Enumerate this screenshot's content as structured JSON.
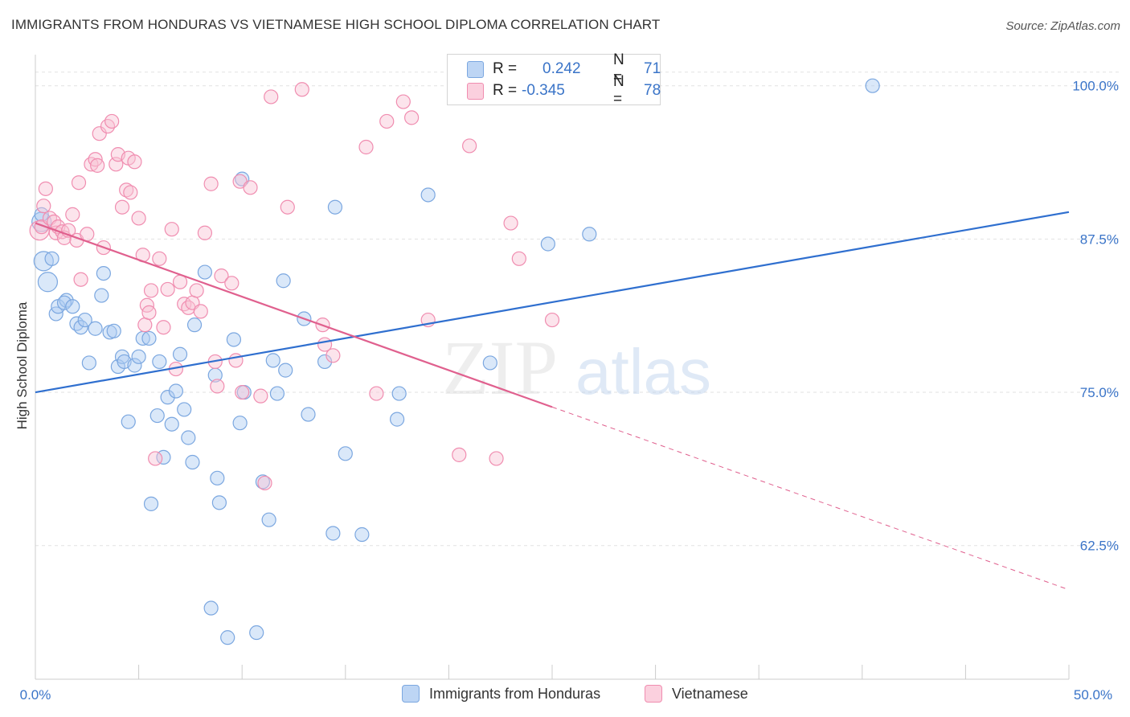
{
  "title": "IMMIGRANTS FROM HONDURAS VS VIETNAMESE HIGH SCHOOL DIPLOMA CORRELATION CHART",
  "source": "Source: ZipAtlas.com",
  "watermark": {
    "zip": "ZIP",
    "atlas": "atlas"
  },
  "stats": [
    {
      "r_label": "R =",
      "r_value": "0.242",
      "n_label": "N =",
      "n_value": "71",
      "color": "#7ba7e0"
    },
    {
      "r_label": "R =",
      "r_value": "-0.345",
      "n_label": "N =",
      "n_value": "78",
      "color": "#f08db0"
    }
  ],
  "legend": [
    "Immigrants from Honduras",
    "Vietnamese"
  ],
  "chart_data": {
    "type": "scatter",
    "title": "IMMIGRANTS FROM HONDURAS VS VIETNAMESE HIGH SCHOOL DIPLOMA CORRELATION CHART",
    "xlabel": "",
    "ylabel": "High School Diploma",
    "xlim": [
      0,
      50
    ],
    "ylim": [
      51.6,
      102.8
    ],
    "x_tick_labels": [
      "0.0%",
      "50.0%"
    ],
    "y_ticks": [
      62.5,
      75.0,
      87.5,
      100.0
    ],
    "y_tick_labels": [
      "62.5%",
      "75.0%",
      "87.5%",
      "100.0%"
    ],
    "grid": true,
    "legend_position": "bottom-center",
    "series": [
      {
        "name": "Immigrants from Honduras",
        "color": "#7ba7e0",
        "fill": "#aecdf2",
        "line_color": "#2f6fcf",
        "trend": {
          "x0": 0,
          "y0": 75.0,
          "x1": 50,
          "y1": 89.7
        },
        "points": [
          [
            0.3,
            88.9
          ],
          [
            0.3,
            89.5
          ],
          [
            0.4,
            85.7
          ],
          [
            0.6,
            84.0
          ],
          [
            0.8,
            85.9
          ],
          [
            1.0,
            81.4
          ],
          [
            1.1,
            82.0
          ],
          [
            1.5,
            82.5
          ],
          [
            1.4,
            82.3
          ],
          [
            1.8,
            82.0
          ],
          [
            2.0,
            80.6
          ],
          [
            2.2,
            80.3
          ],
          [
            2.4,
            80.9
          ],
          [
            2.6,
            77.4
          ],
          [
            2.9,
            80.2
          ],
          [
            3.2,
            82.9
          ],
          [
            3.3,
            84.7
          ],
          [
            3.6,
            79.9
          ],
          [
            3.8,
            80.0
          ],
          [
            4.0,
            77.1
          ],
          [
            4.2,
            77.9
          ],
          [
            4.3,
            77.5
          ],
          [
            4.5,
            72.6
          ],
          [
            4.8,
            77.2
          ],
          [
            5.0,
            77.9
          ],
          [
            5.2,
            79.4
          ],
          [
            5.5,
            79.4
          ],
          [
            5.6,
            65.9
          ],
          [
            5.9,
            73.1
          ],
          [
            6.0,
            77.5
          ],
          [
            6.2,
            69.7
          ],
          [
            6.4,
            74.6
          ],
          [
            6.6,
            72.4
          ],
          [
            6.8,
            75.1
          ],
          [
            7.0,
            78.1
          ],
          [
            7.2,
            73.6
          ],
          [
            7.4,
            71.3
          ],
          [
            7.6,
            69.3
          ],
          [
            7.7,
            80.5
          ],
          [
            8.2,
            84.8
          ],
          [
            8.5,
            57.4
          ],
          [
            8.7,
            76.4
          ],
          [
            8.8,
            68.0
          ],
          [
            8.9,
            66.0
          ],
          [
            9.3,
            55.0
          ],
          [
            9.6,
            79.3
          ],
          [
            10.0,
            92.4
          ],
          [
            10.1,
            75.0
          ],
          [
            9.9,
            72.5
          ],
          [
            10.7,
            55.4
          ],
          [
            11.0,
            67.7
          ],
          [
            11.3,
            64.6
          ],
          [
            11.5,
            77.6
          ],
          [
            11.7,
            74.9
          ],
          [
            12.0,
            84.1
          ],
          [
            12.1,
            76.8
          ],
          [
            13.0,
            81.0
          ],
          [
            13.2,
            73.2
          ],
          [
            14.0,
            77.5
          ],
          [
            14.4,
            63.5
          ],
          [
            14.5,
            90.1
          ],
          [
            15.0,
            70.0
          ],
          [
            15.8,
            63.4
          ],
          [
            17.5,
            72.8
          ],
          [
            17.6,
            74.9
          ],
          [
            19.0,
            91.1
          ],
          [
            22.0,
            77.4
          ],
          [
            24.8,
            87.1
          ],
          [
            26.8,
            87.9
          ],
          [
            28.0,
            100.0
          ],
          [
            40.5,
            100.0
          ]
        ]
      },
      {
        "name": "Vietnamese",
        "color": "#f08db0",
        "fill": "#f9c3d5",
        "line_color": "#e0608e",
        "trend": {
          "x0": 0,
          "y0": 88.8,
          "x1": 25,
          "y1": 73.8
        },
        "trend_dashed": {
          "x0": 25,
          "y0": 73.8,
          "x1": 50,
          "y1": 58.9
        },
        "points": [
          [
            0.2,
            88.2
          ],
          [
            0.3,
            88.5
          ],
          [
            0.4,
            90.2
          ],
          [
            0.5,
            91.6
          ],
          [
            0.7,
            89.2
          ],
          [
            0.9,
            88.9
          ],
          [
            1.0,
            88.0
          ],
          [
            1.1,
            88.5
          ],
          [
            1.3,
            88.1
          ],
          [
            1.4,
            87.6
          ],
          [
            1.6,
            88.2
          ],
          [
            1.8,
            89.5
          ],
          [
            2.0,
            87.4
          ],
          [
            2.1,
            92.1
          ],
          [
            2.2,
            84.2
          ],
          [
            2.5,
            87.9
          ],
          [
            2.7,
            93.6
          ],
          [
            2.9,
            94.0
          ],
          [
            3.0,
            93.5
          ],
          [
            3.1,
            96.1
          ],
          [
            3.3,
            86.8
          ],
          [
            3.5,
            96.7
          ],
          [
            3.7,
            97.1
          ],
          [
            3.9,
            93.6
          ],
          [
            4.0,
            94.4
          ],
          [
            4.2,
            90.1
          ],
          [
            4.4,
            91.5
          ],
          [
            4.5,
            94.1
          ],
          [
            4.6,
            91.3
          ],
          [
            4.8,
            93.8
          ],
          [
            5.0,
            89.2
          ],
          [
            5.2,
            86.2
          ],
          [
            5.3,
            80.5
          ],
          [
            5.4,
            82.1
          ],
          [
            5.5,
            81.5
          ],
          [
            5.6,
            83.3
          ],
          [
            5.8,
            69.6
          ],
          [
            6.0,
            85.9
          ],
          [
            6.2,
            80.3
          ],
          [
            6.4,
            83.4
          ],
          [
            6.6,
            88.3
          ],
          [
            6.8,
            76.9
          ],
          [
            7.0,
            84.0
          ],
          [
            7.2,
            82.2
          ],
          [
            7.4,
            81.9
          ],
          [
            7.6,
            82.3
          ],
          [
            7.8,
            83.3
          ],
          [
            8.0,
            81.6
          ],
          [
            8.2,
            88.0
          ],
          [
            8.5,
            92.0
          ],
          [
            8.7,
            77.5
          ],
          [
            8.8,
            75.5
          ],
          [
            9.0,
            84.5
          ],
          [
            9.5,
            83.9
          ],
          [
            9.7,
            77.6
          ],
          [
            9.9,
            92.2
          ],
          [
            10.0,
            75.0
          ],
          [
            10.4,
            91.7
          ],
          [
            10.9,
            74.7
          ],
          [
            11.1,
            67.6
          ],
          [
            11.4,
            99.1
          ],
          [
            12.2,
            90.1
          ],
          [
            12.9,
            99.7
          ],
          [
            13.9,
            80.5
          ],
          [
            14.0,
            78.9
          ],
          [
            14.4,
            78.0
          ],
          [
            16.0,
            95.0
          ],
          [
            16.5,
            74.9
          ],
          [
            17.0,
            97.1
          ],
          [
            17.8,
            98.7
          ],
          [
            18.2,
            97.4
          ],
          [
            19.0,
            80.9
          ],
          [
            20.5,
            69.9
          ],
          [
            21.0,
            95.1
          ],
          [
            22.3,
            69.6
          ],
          [
            23.0,
            88.8
          ],
          [
            23.4,
            85.9
          ],
          [
            25.0,
            80.9
          ]
        ]
      }
    ]
  }
}
